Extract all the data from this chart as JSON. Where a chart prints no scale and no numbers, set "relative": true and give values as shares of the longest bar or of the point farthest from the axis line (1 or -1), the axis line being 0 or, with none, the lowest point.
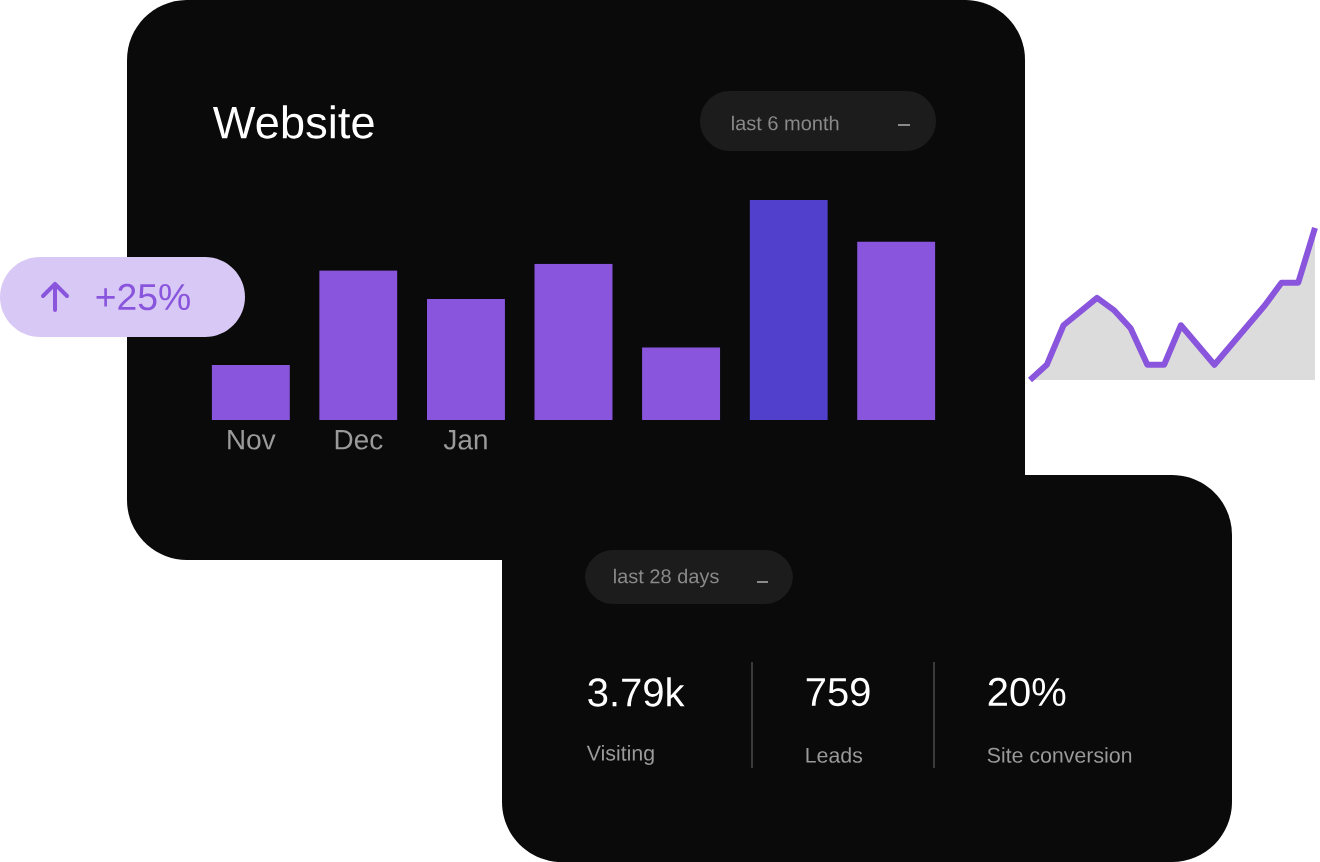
{
  "chart_data": [
    {
      "type": "bar",
      "title": "Website",
      "annotations": [
        "last 6 month",
        "+25%"
      ],
      "relative": true,
      "categories": [
        "Nov",
        "Dec",
        "Jan",
        null,
        null,
        null,
        null
      ],
      "values": [
        0.25,
        0.68,
        0.55,
        0.71,
        0.33,
        1,
        0.81
      ],
      "colors": [
        "#8a55dd",
        "#8a55dd",
        "#8a55dd",
        "#8a55dd",
        "#8a55dd",
        "#5040cc",
        "#8a55dd"
      ]
    },
    {
      "type": "area",
      "relative": true,
      "categories": [
        null,
        null,
        null,
        null,
        null,
        null,
        null,
        null,
        null,
        null,
        null,
        null,
        null,
        null,
        null,
        null,
        null,
        null
      ],
      "values": [
        0,
        0.1,
        0.36,
        0.45,
        0.54,
        0.46,
        0.34,
        0.1,
        0.1,
        0.36,
        0.23,
        0.1,
        0.23,
        0.36,
        0.49,
        0.64,
        0.64,
        1
      ],
      "color": "#8a55dd"
    },
    {
      "type": "other",
      "annotations": [
        "last 28 days",
        "3.79k",
        "Visiting",
        "759",
        "Leads",
        "20%",
        "Site conversion"
      ]
    }
  ]
}
